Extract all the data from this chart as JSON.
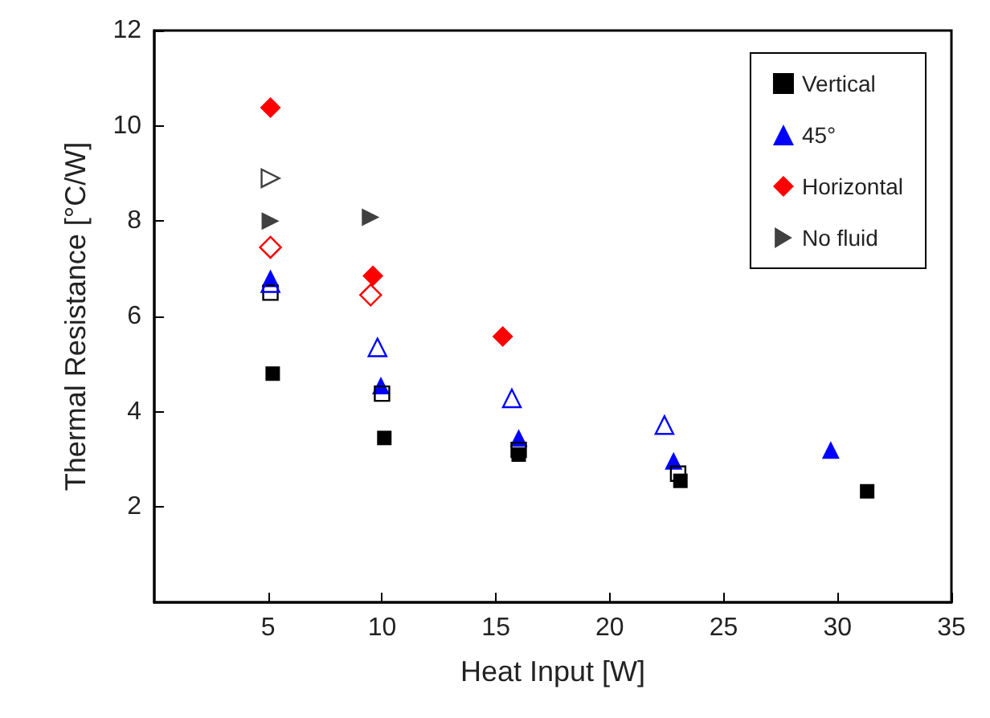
{
  "chart_data": {
    "type": "scatter",
    "xlabel": "Heat Input [W]",
    "ylabel": "Thermal Resistance [°C/W]",
    "xlim": [
      0,
      35
    ],
    "xticks": [
      5,
      10,
      15,
      20,
      25,
      30,
      35
    ],
    "ylim": [
      0,
      12
    ],
    "yticks": [
      2,
      4,
      6,
      8,
      10,
      12
    ],
    "grid": false,
    "legend": "top right",
    "series": [
      {
        "name": "Vertical",
        "color": "#000000",
        "marker": "square",
        "x": [
          5.2,
          10.1,
          16.0,
          23.1,
          31.3
        ],
        "values": [
          4.8,
          3.45,
          3.1,
          2.55,
          2.33
        ]
      },
      {
        "color": "#000000",
        "marker": "square",
        "x": [
          5.1,
          10.0,
          16.0,
          23.0
        ],
        "values": [
          6.5,
          4.38,
          3.2,
          2.7
        ]
      },
      {
        "name": "45°",
        "color": "#0000ff",
        "marker": "triangle",
        "x": [
          5.1,
          9.95,
          16.0,
          22.8,
          29.7
        ],
        "values": [
          6.8,
          4.55,
          3.45,
          2.97,
          3.2
        ]
      },
      {
        "color": "#0000ff",
        "marker": "triangle",
        "x": [
          5.1,
          9.8,
          15.7,
          22.4
        ],
        "values": [
          6.7,
          5.35,
          4.28,
          3.72
        ]
      },
      {
        "name": "Horizontal",
        "color": "#ff0000",
        "marker": "diamond",
        "x": [
          5.1,
          9.6,
          15.3
        ],
        "values": [
          10.38,
          6.85,
          5.58
        ]
      },
      {
        "color": "#ff0000",
        "marker": "diamond",
        "x": [
          5.1,
          9.5
        ],
        "values": [
          7.45,
          6.45
        ]
      },
      {
        "name": "No fluid",
        "color": "#404040",
        "marker": "triangle-right",
        "x": [
          5.1,
          9.5
        ],
        "values": [
          8.0,
          8.08
        ]
      },
      {
        "color": "#404040",
        "marker": "triangle-right",
        "x": [
          5.1
        ],
        "values": [
          8.9
        ]
      }
    ]
  }
}
